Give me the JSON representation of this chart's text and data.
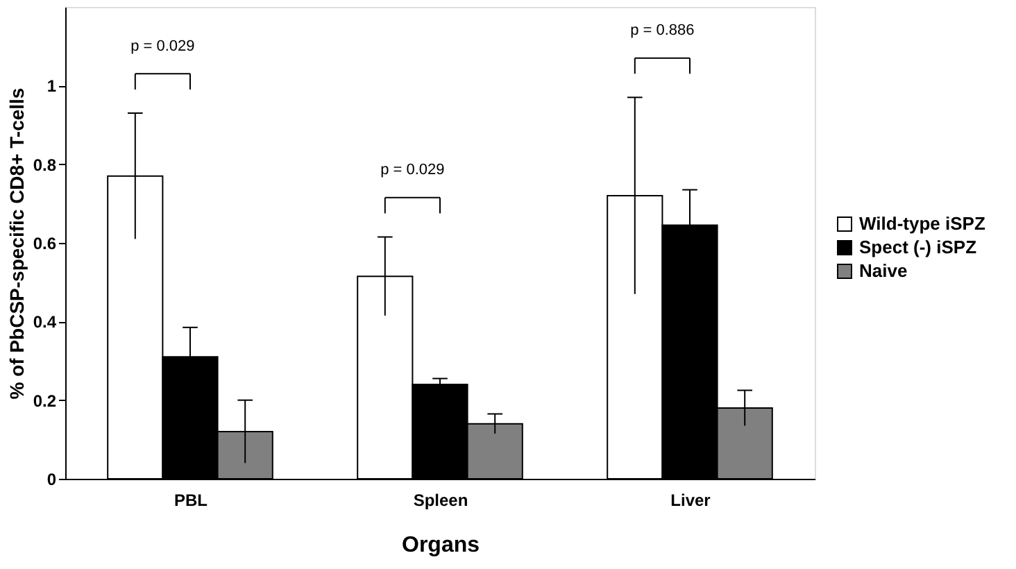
{
  "chart_data": {
    "type": "bar",
    "xlabel": "Organs",
    "ylabel": "% of PbCSP-specific CD8+ T-cells",
    "categories": [
      "PBL",
      "Spleen",
      "Liver"
    ],
    "series": [
      {
        "name": "Wild-type iSPZ",
        "color": "#ffffff",
        "values": [
          0.77,
          0.515,
          0.72
        ],
        "errors": [
          0.16,
          0.1,
          0.25
        ]
      },
      {
        "name": "Spect (-) iSPZ",
        "color": "#000000",
        "values": [
          0.31,
          0.24,
          0.645
        ],
        "errors": [
          0.075,
          0.015,
          0.09
        ]
      },
      {
        "name": "Naive",
        "color": "#808080",
        "values": [
          0.12,
          0.14,
          0.18
        ],
        "errors": [
          0.08,
          0.025,
          0.045
        ]
      }
    ],
    "annotations": [
      "p = 0.029",
      "p = 0.029",
      "p = 0.886"
    ],
    "ylim": [
      0,
      1.2
    ],
    "yticks": [
      0,
      0.2,
      0.4,
      0.6,
      0.8,
      1
    ],
    "grid": false,
    "legend": "right"
  }
}
